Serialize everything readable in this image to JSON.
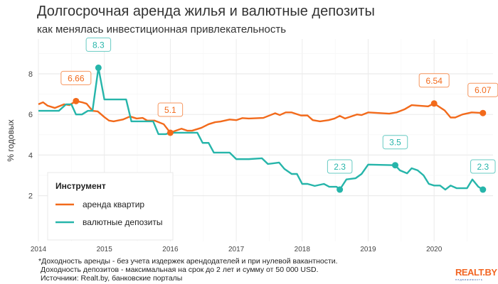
{
  "chart_data": {
    "type": "line",
    "title": "Долгосрочная аренда жилья и валютные депозиты",
    "subtitle": "как менялась инвестиционная привлекательность",
    "xlabel": "",
    "ylabel": "% годовых",
    "xlim": [
      2014,
      2020.9
    ],
    "ylim": [
      -0.25,
      9.7
    ],
    "x_ticks": [
      "2014",
      "2015",
      "2016",
      "2017",
      "2018",
      "2019",
      "2020"
    ],
    "y_ticks": [
      "2",
      "4",
      "6",
      "8"
    ],
    "grid": true,
    "legend": {
      "title": "Инструмент",
      "position": "bottom-left"
    },
    "series": [
      {
        "name": "аренда квартир",
        "color": "#f26a1b",
        "points": [
          [
            2014.0,
            6.5
          ],
          [
            2014.07,
            6.6
          ],
          [
            2014.14,
            6.43
          ],
          [
            2014.25,
            6.32
          ],
          [
            2014.39,
            6.5
          ],
          [
            2014.47,
            6.46
          ],
          [
            2014.57,
            6.66
          ],
          [
            2014.66,
            6.6
          ],
          [
            2014.73,
            6.53
          ],
          [
            2014.82,
            6.18
          ],
          [
            2014.9,
            6.15
          ],
          [
            2015.0,
            5.87
          ],
          [
            2015.07,
            5.7
          ],
          [
            2015.14,
            5.66
          ],
          [
            2015.28,
            5.75
          ],
          [
            2015.39,
            5.9
          ],
          [
            2015.49,
            5.8
          ],
          [
            2015.58,
            5.83
          ],
          [
            2015.65,
            5.7
          ],
          [
            2015.76,
            5.7
          ],
          [
            2015.9,
            5.52
          ],
          [
            2016.0,
            5.1
          ],
          [
            2016.08,
            5.2
          ],
          [
            2016.17,
            5.3
          ],
          [
            2016.26,
            5.2
          ],
          [
            2016.33,
            5.2
          ],
          [
            2016.47,
            5.34
          ],
          [
            2016.58,
            5.52
          ],
          [
            2016.68,
            5.62
          ],
          [
            2016.76,
            5.65
          ],
          [
            2016.9,
            5.75
          ],
          [
            2017.0,
            5.72
          ],
          [
            2017.09,
            5.82
          ],
          [
            2017.19,
            5.8
          ],
          [
            2017.41,
            5.83
          ],
          [
            2017.59,
            6.06
          ],
          [
            2017.66,
            5.97
          ],
          [
            2017.75,
            6.1
          ],
          [
            2017.84,
            6.1
          ],
          [
            2017.98,
            5.95
          ],
          [
            2018.08,
            5.95
          ],
          [
            2018.16,
            5.72
          ],
          [
            2018.27,
            5.66
          ],
          [
            2018.4,
            5.72
          ],
          [
            2018.49,
            5.8
          ],
          [
            2018.57,
            5.93
          ],
          [
            2018.65,
            5.8
          ],
          [
            2018.83,
            6.0
          ],
          [
            2018.9,
            5.97
          ],
          [
            2019.0,
            6.1
          ],
          [
            2019.32,
            6.04
          ],
          [
            2019.43,
            6.1
          ],
          [
            2019.55,
            6.25
          ],
          [
            2019.66,
            6.46
          ],
          [
            2019.78,
            6.43
          ],
          [
            2019.91,
            6.4
          ],
          [
            2020.0,
            6.54
          ],
          [
            2020.16,
            6.2
          ],
          [
            2020.25,
            5.85
          ],
          [
            2020.32,
            5.85
          ],
          [
            2020.43,
            6.0
          ],
          [
            2020.57,
            6.1
          ],
          [
            2020.74,
            6.07
          ]
        ]
      },
      {
        "name": "валютные депозиты",
        "color": "#26b5aa",
        "points": [
          [
            2014.0,
            6.18
          ],
          [
            2014.31,
            6.18
          ],
          [
            2014.42,
            6.5
          ],
          [
            2014.5,
            6.5
          ],
          [
            2014.57,
            6.0
          ],
          [
            2014.66,
            6.0
          ],
          [
            2014.75,
            6.18
          ],
          [
            2014.82,
            6.18
          ],
          [
            2014.91,
            8.3
          ],
          [
            2015.0,
            6.74
          ],
          [
            2015.33,
            6.74
          ],
          [
            2015.41,
            5.66
          ],
          [
            2015.74,
            5.66
          ],
          [
            2015.82,
            5.03
          ],
          [
            2015.93,
            5.03
          ],
          [
            2016.0,
            5.1
          ],
          [
            2016.41,
            5.1
          ],
          [
            2016.49,
            4.6
          ],
          [
            2016.58,
            4.6
          ],
          [
            2016.66,
            4.12
          ],
          [
            2016.9,
            4.12
          ],
          [
            2017.0,
            3.8
          ],
          [
            2017.19,
            3.8
          ],
          [
            2017.39,
            3.84
          ],
          [
            2017.48,
            3.56
          ],
          [
            2017.65,
            3.63
          ],
          [
            2017.73,
            3.32
          ],
          [
            2017.84,
            3.07
          ],
          [
            2017.92,
            3.07
          ],
          [
            2018.0,
            2.58
          ],
          [
            2018.08,
            2.58
          ],
          [
            2018.19,
            2.48
          ],
          [
            2018.33,
            2.58
          ],
          [
            2018.41,
            2.44
          ],
          [
            2018.52,
            2.44
          ],
          [
            2018.57,
            2.3
          ],
          [
            2018.67,
            2.8
          ],
          [
            2018.81,
            2.86
          ],
          [
            2018.9,
            3.07
          ],
          [
            2019.0,
            3.53
          ],
          [
            2019.41,
            3.5
          ],
          [
            2019.48,
            3.25
          ],
          [
            2019.59,
            3.1
          ],
          [
            2019.66,
            3.35
          ],
          [
            2019.75,
            3.25
          ],
          [
            2019.84,
            3.0
          ],
          [
            2019.92,
            2.58
          ],
          [
            2020.0,
            2.5
          ],
          [
            2020.09,
            2.5
          ],
          [
            2020.17,
            2.3
          ],
          [
            2020.25,
            2.5
          ],
          [
            2020.34,
            2.37
          ],
          [
            2020.5,
            2.37
          ],
          [
            2020.58,
            2.8
          ],
          [
            2020.67,
            2.44
          ],
          [
            2020.74,
            2.3
          ]
        ]
      }
    ],
    "annotations": [
      {
        "series": 0,
        "x": 2014.57,
        "y": 6.66,
        "label": "6.66"
      },
      {
        "series": 1,
        "x": 2014.91,
        "y": 8.3,
        "label": "8.3"
      },
      {
        "series": 0,
        "x": 2016.0,
        "y": 5.1,
        "label": "5.1"
      },
      {
        "series": 1,
        "x": 2018.57,
        "y": 2.3,
        "label": "2.3"
      },
      {
        "series": 1,
        "x": 2019.41,
        "y": 3.5,
        "label": "3.5"
      },
      {
        "series": 0,
        "x": 2020.0,
        "y": 6.54,
        "label": "6.54"
      },
      {
        "series": 0,
        "x": 2020.74,
        "y": 6.07,
        "label": "6.07"
      },
      {
        "series": 1,
        "x": 2020.74,
        "y": 2.3,
        "label": "2.3"
      }
    ],
    "notes": [
      "*Доходность аренды - без учета издержек арендодателей и при нулевой вакантности.",
      "Доходность депозитов - максимальная на срок до 2 лет и сумму от 50  000 USD.",
      "Источники: Realt.by, банковские порталы"
    ]
  },
  "logo": {
    "text": "REALT.BY",
    "sub": "недвижимость"
  }
}
